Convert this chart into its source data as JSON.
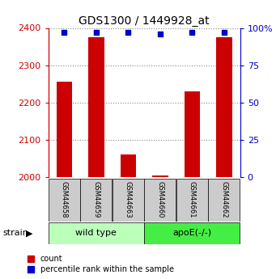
{
  "title": "GDS1300 / 1449928_at",
  "samples": [
    "GSM44658",
    "GSM44659",
    "GSM44663",
    "GSM44660",
    "GSM44661",
    "GSM44662"
  ],
  "counts": [
    2255,
    2375,
    2060,
    2005,
    2230,
    2375
  ],
  "percentiles": [
    97,
    97,
    97,
    96,
    97,
    97
  ],
  "ylim_left": [
    2000,
    2400
  ],
  "ylim_right": [
    0,
    100
  ],
  "yticks_left": [
    2000,
    2100,
    2200,
    2300,
    2400
  ],
  "yticks_right": [
    0,
    25,
    50,
    75,
    100
  ],
  "bar_color": "#cc0000",
  "percentile_color": "#0000cc",
  "groups": [
    {
      "label": "wild type",
      "indices": [
        0,
        1,
        2
      ],
      "color": "#bbffbb"
    },
    {
      "label": "apoE(-/-)",
      "indices": [
        3,
        4,
        5
      ],
      "color": "#44ee44"
    }
  ],
  "group_row_label": "strain",
  "legend_count_label": "count",
  "legend_pct_label": "percentile rank within the sample",
  "bar_width": 0.5,
  "grid_color": "#888888",
  "background_color": "#ffffff",
  "box_color": "#cccccc"
}
